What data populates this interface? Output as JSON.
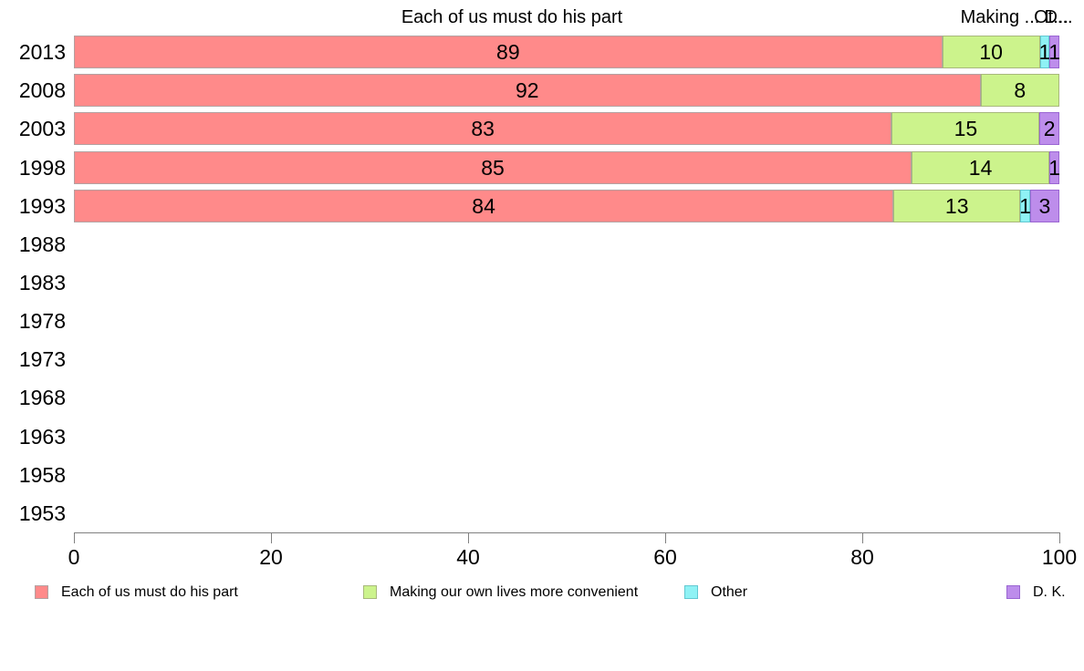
{
  "chart_data": {
    "type": "bar",
    "orientation": "horizontal",
    "stacked": true,
    "grid": false,
    "legend_position": "bottom",
    "xlim": [
      0,
      100
    ],
    "xticks": [
      "0",
      "20",
      "40",
      "60",
      "80",
      "100"
    ],
    "header_labels": [
      "Each of us must do his part",
      "Making ...",
      "Ot...",
      "D..."
    ],
    "categories": [
      "2013",
      "2008",
      "2003",
      "1998",
      "1993",
      "1988",
      "1983",
      "1978",
      "1973",
      "1968",
      "1963",
      "1958",
      "1953"
    ],
    "series": [
      {
        "name": "Each of us must do his part",
        "color": "#ff8a8a",
        "values": [
          89,
          92,
          83,
          85,
          84,
          null,
          null,
          null,
          null,
          null,
          null,
          null,
          null
        ]
      },
      {
        "name": "Making our own lives more convenient",
        "color": "#ccf38c",
        "values": [
          10,
          8,
          15,
          14,
          13,
          null,
          null,
          null,
          null,
          null,
          null,
          null,
          null
        ]
      },
      {
        "name": "Other",
        "color": "#8ff2f5",
        "values": [
          1,
          null,
          null,
          null,
          1,
          null,
          null,
          null,
          null,
          null,
          null,
          null,
          null
        ]
      },
      {
        "name": "D. K.",
        "color": "#bd8deb",
        "values": [
          1,
          null,
          2,
          1,
          3,
          null,
          null,
          null,
          null,
          null,
          null,
          null,
          null
        ]
      }
    ]
  }
}
